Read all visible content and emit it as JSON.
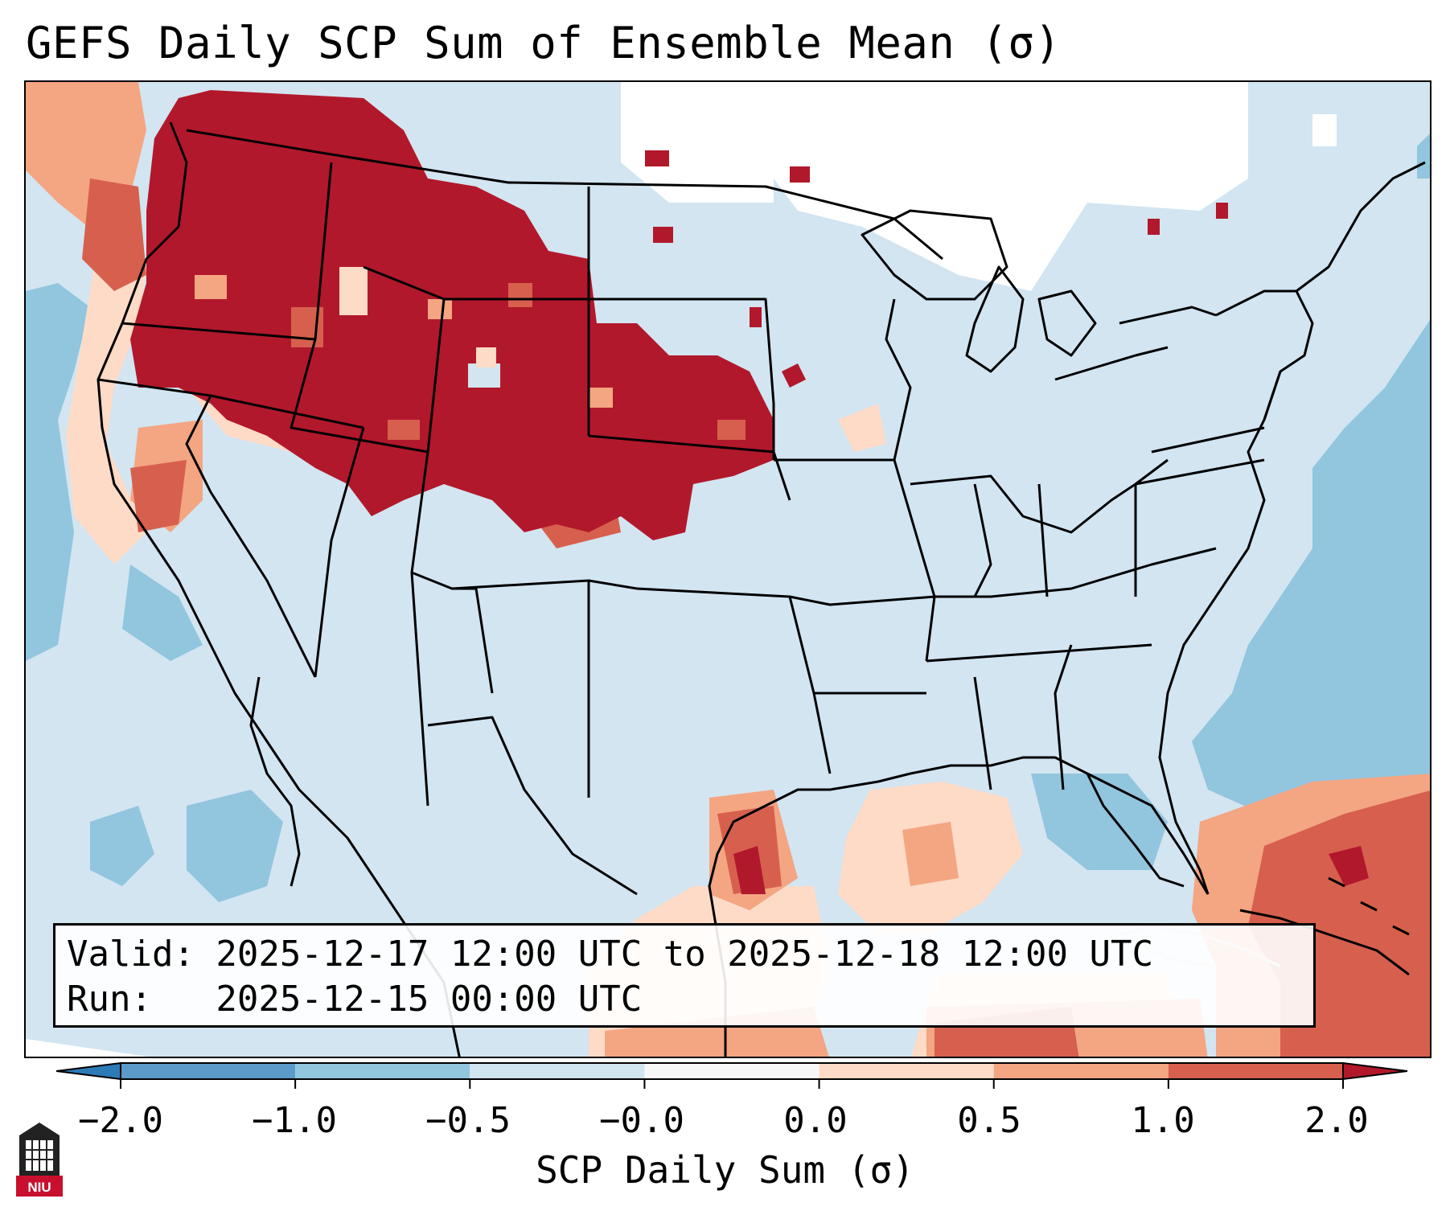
{
  "title": "GEFS Daily SCP Sum of Ensemble Mean (σ)",
  "info": {
    "valid_line": "Valid: 2025-12-17 12:00 UTC to 2025-12-18 12:00 UTC",
    "run_line": "Run:   2025-12-15 00:00 UTC"
  },
  "colorbar": {
    "label": "SCP Daily Sum (σ)",
    "ticks": [
      "−2.0",
      "−1.0",
      "−0.5",
      "−0.0",
      "0.0",
      "0.5",
      "1.0",
      "2.0"
    ],
    "bins": [
      {
        "range": "< -2.0",
        "color": "#2c7bb6"
      },
      {
        "range": "-2.0 to -1.0",
        "color": "#5c9bc9"
      },
      {
        "range": "-1.0 to -0.5",
        "color": "#92c5de"
      },
      {
        "range": "-0.5 to -0.0",
        "color": "#d1e5f0"
      },
      {
        "range": "-0.0 to 0.0",
        "color": "#f7f7f7"
      },
      {
        "range": "0.0 to 0.5",
        "color": "#fddbc7"
      },
      {
        "range": "0.5 to 1.0",
        "color": "#f4a582"
      },
      {
        "range": "1.0 to 2.0",
        "color": "#d6604d"
      },
      {
        "range": "> 2.0",
        "color": "#b2182b"
      }
    ]
  },
  "logo": {
    "text": "NIU",
    "color": "#c8102e"
  },
  "map": {
    "region": "Contiguous United States and surrounding areas",
    "features": [
      "Strongly positive anomaly (>2σ) over the Pacific Northwest, northern Rockies, Wyoming, Colorado and Nebraska",
      "Positive anomaly along the Texas Gulf coast, Gulf of Mexico, and north of the Greater Antilles",
      "Negative anomaly over the western Atlantic and eastern Pacific"
    ]
  }
}
